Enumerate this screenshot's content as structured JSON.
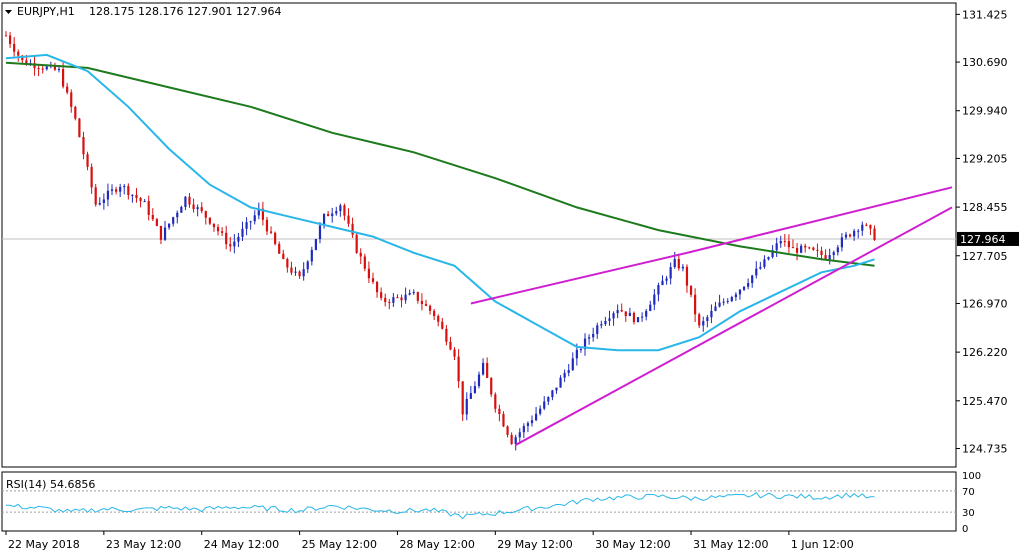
{
  "header": {
    "symbol": "EURJPY,H1",
    "ohlc": "128.175 128.176 127.901 127.964"
  },
  "rsi_header": {
    "label": "RSI(14) 54.6856"
  },
  "chart_data": [
    {
      "type": "candlestick",
      "symbol": "EURJPY",
      "timeframe": "H1",
      "last_price": "127.964",
      "ylim": [
        124.45,
        131.6
      ],
      "price_tick_labels": [
        "131.425",
        "130.690",
        "129.940",
        "129.205",
        "128.455",
        "127.705",
        "126.970",
        "126.220",
        "125.470",
        "124.735"
      ],
      "price_tick_values": [
        131.425,
        130.69,
        129.94,
        129.205,
        128.455,
        127.705,
        126.97,
        126.22,
        125.47,
        124.735
      ],
      "time_labels": [
        "22 May 2018",
        "23 May 12:00",
        "24 May 12:00",
        "25 May 12:00",
        "28 May 12:00",
        "29 May 12:00",
        "30 May 12:00",
        "31 May 12:00",
        "1 Jun 12:00"
      ],
      "colors": {
        "bull": "#1f2bbd",
        "bear": "#d60f0f",
        "ma_fast": "#29b6e8",
        "ma_slow": "#1d7a1d",
        "trendline": "#d01fd0",
        "last_price_label_bg": "#000000"
      },
      "ohlc_key_points": [
        [
          0,
          131.1
        ],
        [
          4,
          130.7
        ],
        [
          10,
          130.6
        ],
        [
          13,
          130.55
        ],
        [
          17,
          129.8
        ],
        [
          22,
          128.5
        ],
        [
          28,
          128.8
        ],
        [
          34,
          128.5
        ],
        [
          38,
          128.0
        ],
        [
          44,
          128.6
        ],
        [
          50,
          128.25
        ],
        [
          55,
          127.85
        ],
        [
          62,
          128.4
        ],
        [
          68,
          127.6
        ],
        [
          72,
          127.35
        ],
        [
          78,
          128.3
        ],
        [
          82,
          128.5
        ],
        [
          86,
          127.8
        ],
        [
          92,
          127.0
        ],
        [
          100,
          127.1
        ],
        [
          105,
          126.8
        ],
        [
          110,
          126.2
        ],
        [
          112,
          125.3
        ],
        [
          117,
          126.0
        ],
        [
          120,
          125.4
        ],
        [
          124,
          124.85
        ],
        [
          129,
          125.2
        ],
        [
          133,
          125.5
        ],
        [
          137,
          125.9
        ],
        [
          141,
          126.3
        ],
        [
          146,
          126.7
        ],
        [
          150,
          126.9
        ],
        [
          155,
          126.7
        ],
        [
          160,
          127.2
        ],
        [
          164,
          127.6
        ],
        [
          166,
          127.5
        ],
        [
          170,
          126.6
        ],
        [
          174,
          126.9
        ],
        [
          180,
          127.2
        ],
        [
          186,
          127.6
        ],
        [
          190,
          127.95
        ],
        [
          193,
          127.8
        ],
        [
          196,
          127.8
        ],
        [
          201,
          127.7
        ],
        [
          206,
          128.0
        ],
        [
          210,
          128.2
        ],
        [
          213,
          128.0
        ]
      ],
      "trendline_upper": {
        "from": [
          114,
          126.97
        ],
        "to": [
          232,
          128.76
        ]
      },
      "trendline_lower": {
        "from": [
          125,
          124.79
        ],
        "to": [
          232,
          128.45
        ]
      },
      "upper_wedge_line": {
        "from": [
          167,
          127.75
        ],
        "to": [
          232,
          128.76
        ]
      },
      "ma_fast_points": [
        [
          0,
          130.75
        ],
        [
          10,
          130.8
        ],
        [
          20,
          130.55
        ],
        [
          30,
          130.0
        ],
        [
          40,
          129.35
        ],
        [
          50,
          128.8
        ],
        [
          60,
          128.45
        ],
        [
          70,
          128.3
        ],
        [
          80,
          128.15
        ],
        [
          90,
          128.0
        ],
        [
          100,
          127.75
        ],
        [
          110,
          127.55
        ],
        [
          120,
          127.0
        ],
        [
          130,
          126.65
        ],
        [
          140,
          126.3
        ],
        [
          150,
          126.25
        ],
        [
          160,
          126.25
        ],
        [
          170,
          126.45
        ],
        [
          180,
          126.85
        ],
        [
          190,
          127.15
        ],
        [
          200,
          127.45
        ],
        [
          208,
          127.55
        ],
        [
          213,
          127.65
        ]
      ],
      "ma_slow_points": [
        [
          0,
          130.68
        ],
        [
          20,
          130.6
        ],
        [
          40,
          130.3
        ],
        [
          60,
          130.0
        ],
        [
          80,
          129.6
        ],
        [
          100,
          129.3
        ],
        [
          120,
          128.9
        ],
        [
          140,
          128.45
        ],
        [
          160,
          128.1
        ],
        [
          180,
          127.85
        ],
        [
          200,
          127.65
        ],
        [
          213,
          127.55
        ]
      ]
    },
    {
      "type": "line",
      "indicator": "RSI(14)",
      "last_value": 54.6856,
      "ylim": [
        0,
        100
      ],
      "tick_labels": [
        "100",
        "70",
        "30",
        "0"
      ],
      "tick_values": [
        100,
        70,
        30,
        0
      ],
      "levels": [
        70,
        30
      ],
      "color": "#29b6e8",
      "points": [
        [
          0,
          42
        ],
        [
          8,
          38
        ],
        [
          16,
          30
        ],
        [
          24,
          36
        ],
        [
          32,
          34
        ],
        [
          40,
          38
        ],
        [
          48,
          35
        ],
        [
          56,
          40
        ],
        [
          64,
          37
        ],
        [
          72,
          33
        ],
        [
          80,
          42
        ],
        [
          88,
          36
        ],
        [
          96,
          32
        ],
        [
          104,
          34
        ],
        [
          112,
          22
        ],
        [
          120,
          28
        ],
        [
          128,
          36
        ],
        [
          136,
          44
        ],
        [
          144,
          55
        ],
        [
          152,
          58
        ],
        [
          160,
          60
        ],
        [
          168,
          56
        ],
        [
          176,
          58
        ],
        [
          184,
          62
        ],
        [
          192,
          60
        ],
        [
          200,
          58
        ],
        [
          208,
          63
        ],
        [
          213,
          55
        ]
      ]
    }
  ]
}
